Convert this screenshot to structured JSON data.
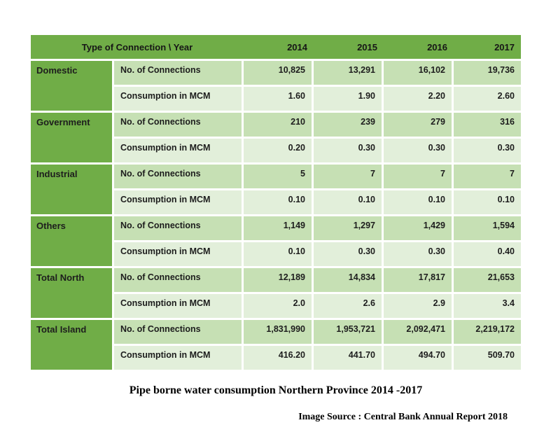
{
  "chart_data": {
    "type": "table",
    "title": "Pipe borne water consumption Northern Province 2014 -2017",
    "source": "Image Source : Central Bank Annual Report 2018",
    "header": {
      "label": "Type of Connection \\ Year",
      "years": [
        "2014",
        "2015",
        "2016",
        "2017"
      ]
    },
    "sections": [
      {
        "name": "Domestic",
        "rows": [
          {
            "metric": "No. of Connections",
            "values": [
              "10,825",
              "13,291",
              "16,102",
              "19,736"
            ]
          },
          {
            "metric": "Consumption in MCM",
            "values": [
              "1.60",
              "1.90",
              "2.20",
              "2.60"
            ]
          }
        ]
      },
      {
        "name": "Government",
        "rows": [
          {
            "metric": "No. of Connections",
            "values": [
              "210",
              "239",
              "279",
              "316"
            ]
          },
          {
            "metric": "Consumption in MCM",
            "values": [
              "0.20",
              "0.30",
              "0.30",
              "0.30"
            ]
          }
        ]
      },
      {
        "name": "Industrial",
        "rows": [
          {
            "metric": "No. of Connections",
            "values": [
              "5",
              "7",
              "7",
              "7"
            ]
          },
          {
            "metric": "Consumption in MCM",
            "values": [
              "0.10",
              "0.10",
              "0.10",
              "0.10"
            ]
          }
        ]
      },
      {
        "name": "Others",
        "rows": [
          {
            "metric": "No. of Connections",
            "values": [
              "1,149",
              "1,297",
              "1,429",
              "1,594"
            ]
          },
          {
            "metric": "Consumption in MCM",
            "values": [
              "0.10",
              "0.30",
              "0.30",
              "0.40"
            ]
          }
        ]
      },
      {
        "name": "Total North",
        "rows": [
          {
            "metric": "No. of Connections",
            "values": [
              "12,189",
              "14,834",
              "17,817",
              "21,653"
            ]
          },
          {
            "metric": "Consumption in MCM",
            "values": [
              "2.0",
              "2.6",
              "2.9",
              "3.4"
            ]
          }
        ]
      },
      {
        "name": "Total Island",
        "rows": [
          {
            "metric": "No. of Connections",
            "values": [
              "1,831,990",
              "1,953,721",
              "2,092,471",
              "2,219,172"
            ]
          },
          {
            "metric": "Consumption in MCM",
            "values": [
              "416.20",
              "441.70",
              "494.70",
              "509.70"
            ]
          }
        ]
      }
    ],
    "layout": {
      "row_banding": [
        "connections-row",
        "consumption-row"
      ],
      "value_alignment": "right"
    }
  },
  "colors": {
    "header_green": "#70ad47",
    "category_green": "#70ad47",
    "band_connections": "#c6e0b4",
    "band_consumption": "#e2efda",
    "table_text": "#1d1d1d",
    "caption_text": "#000000"
  }
}
